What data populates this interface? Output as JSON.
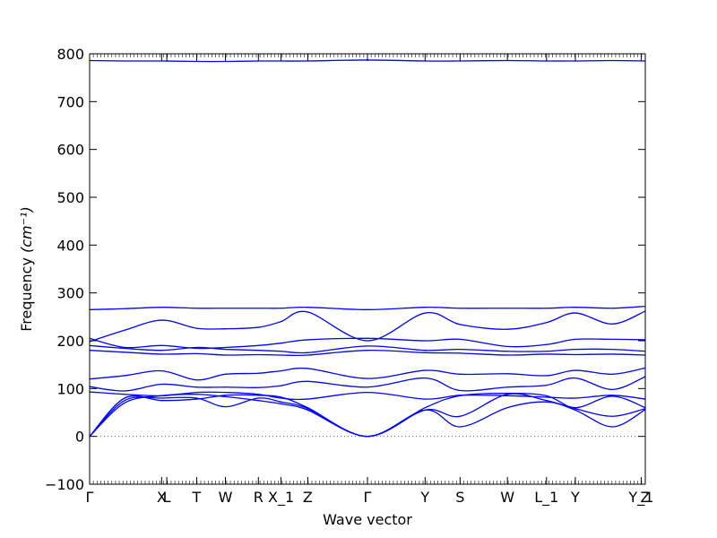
{
  "chart_data": {
    "type": "line",
    "title": "",
    "xlabel": "Wave vector",
    "ylabel": "Frequency ",
    "ylabel_unit": "(cm⁻¹)",
    "ylim": [
      -100,
      800
    ],
    "xlim": [
      0,
      27
    ],
    "yticks": [
      -100,
      0,
      100,
      200,
      300,
      400,
      500,
      600,
      700,
      800
    ],
    "colors": {
      "bands": "#0000ff",
      "zero_line": "#666666",
      "axes": "#000000"
    },
    "grid": false,
    "legend": "none",
    "zero_line": {
      "y": 0,
      "style": "dotted"
    },
    "high_symmetry_points": [
      {
        "label": "Γ",
        "x": 0
      },
      {
        "label": "X",
        "x": 3.5
      },
      {
        "label": "L",
        "x": 3.75
      },
      {
        "label": "T",
        "x": 5.2
      },
      {
        "label": "W",
        "x": 6.6
      },
      {
        "label": "R",
        "x": 8.2
      },
      {
        "label": "X_1",
        "x": 9.3
      },
      {
        "label": "Z",
        "x": 10.6
      },
      {
        "label": "Γ",
        "x": 13.5
      },
      {
        "label": "Y",
        "x": 16.3
      },
      {
        "label": "S",
        "x": 18.0
      },
      {
        "label": "W",
        "x": 20.3
      },
      {
        "label": "L_1",
        "x": 22.2
      },
      {
        "label": "Y",
        "x": 23.6
      },
      {
        "label": "Y_1",
        "x": 26.8
      },
      {
        "label": "Z",
        "x": 27
      }
    ],
    "series": [
      {
        "x": [
          0,
          1.7,
          3.5,
          5.2,
          6.6,
          8.2,
          9.3,
          10.6,
          13.5,
          16.3,
          18.0,
          20.3,
          22.2,
          23.6,
          25.4,
          27
        ],
        "y": [
          0,
          70,
          85,
          88,
          83,
          75,
          68,
          55,
          0,
          55,
          20,
          60,
          72,
          55,
          20,
          56
        ]
      },
      {
        "x": [
          0,
          1.7,
          3.5,
          5.2,
          6.6,
          8.2,
          9.3,
          10.6,
          13.5,
          16.3,
          18.0,
          20.3,
          22.2,
          23.6,
          25.4,
          27
        ],
        "y": [
          0,
          75,
          80,
          80,
          62,
          80,
          72,
          58,
          0,
          55,
          42,
          88,
          75,
          58,
          42,
          58
        ]
      },
      {
        "x": [
          0,
          1.7,
          3.5,
          5.2,
          6.6,
          8.2,
          9.3,
          10.6,
          13.5,
          16.3,
          18.0,
          20.3,
          22.2,
          23.6,
          25.4,
          27
        ],
        "y": [
          0,
          80,
          75,
          78,
          86,
          86,
          82,
          60,
          0,
          60,
          85,
          90,
          85,
          60,
          84,
          60
        ]
      },
      {
        "x": [
          0,
          1.7,
          3.5,
          5.2,
          6.6,
          8.2,
          9.3,
          10.6,
          13.5,
          16.3,
          18.0,
          20.3,
          22.2,
          23.6,
          25.4,
          27
        ],
        "y": [
          93,
          88,
          85,
          92,
          92,
          88,
          80,
          78,
          92,
          78,
          86,
          85,
          82,
          80,
          86,
          78
        ]
      },
      {
        "x": [
          0,
          1.7,
          3.5,
          5.2,
          6.6,
          8.2,
          9.3,
          10.6,
          13.5,
          16.3,
          18.0,
          20.3,
          22.2,
          23.6,
          25.4,
          27
        ],
        "y": [
          104,
          95,
          109,
          103,
          103,
          102,
          106,
          115,
          103,
          122,
          96,
          103,
          107,
          122,
          98,
          125
        ]
      },
      {
        "x": [
          0,
          1.7,
          3.5,
          5.2,
          6.6,
          8.2,
          9.3,
          10.6,
          13.5,
          16.3,
          18.0,
          20.3,
          22.2,
          23.6,
          25.4,
          27
        ],
        "y": [
          120,
          127,
          137,
          118,
          130,
          132,
          137,
          142,
          121,
          138,
          130,
          131,
          127,
          138,
          130,
          143
        ]
      },
      {
        "x": [
          0,
          1.7,
          3.5,
          5.2,
          6.6,
          8.2,
          9.3,
          10.6,
          13.5,
          16.3,
          18.0,
          20.3,
          22.2,
          23.6,
          25.4,
          27
        ],
        "y": [
          180,
          176,
          172,
          173,
          170,
          171,
          170,
          170,
          180,
          175,
          174,
          170,
          172,
          171,
          172,
          170
        ]
      },
      {
        "x": [
          0,
          1.7,
          3.5,
          5.2,
          6.6,
          8.2,
          9.3,
          10.6,
          13.5,
          16.3,
          18.0,
          20.3,
          22.2,
          23.6,
          25.4,
          27
        ],
        "y": [
          190,
          184,
          180,
          186,
          182,
          180,
          178,
          175,
          189,
          180,
          182,
          178,
          178,
          182,
          182,
          178
        ]
      },
      {
        "x": [
          0,
          1.7,
          3.5,
          5.2,
          6.6,
          8.2,
          9.3,
          10.6,
          13.5,
          16.3,
          18.0,
          20.3,
          22.2,
          23.6,
          25.4,
          27
        ],
        "y": [
          205,
          186,
          190,
          184,
          186,
          190,
          195,
          202,
          205,
          200,
          203,
          188,
          192,
          203,
          203,
          202
        ]
      },
      {
        "x": [
          0,
          1.7,
          3.5,
          5.2,
          6.6,
          8.2,
          9.3,
          10.6,
          13.5,
          16.3,
          18.0,
          20.3,
          22.2,
          23.6,
          25.4,
          27
        ],
        "y": [
          198,
          222,
          243,
          226,
          225,
          228,
          240,
          260,
          200,
          258,
          234,
          224,
          238,
          258,
          235,
          262
        ]
      },
      {
        "x": [
          0,
          1.7,
          3.5,
          5.2,
          6.6,
          8.2,
          9.3,
          10.6,
          13.5,
          16.3,
          18.0,
          20.3,
          22.2,
          23.6,
          25.4,
          27
        ],
        "y": [
          265,
          267,
          270,
          268,
          268,
          268,
          268,
          270,
          265,
          270,
          268,
          268,
          268,
          270,
          268,
          272
        ]
      },
      {
        "x": [
          0,
          1.7,
          3.5,
          5.2,
          6.6,
          8.2,
          9.3,
          10.6,
          13.5,
          16.3,
          18.0,
          20.3,
          22.2,
          23.6,
          25.4,
          27
        ],
        "y": [
          786,
          785,
          785,
          784,
          784,
          785,
          785,
          785,
          787,
          785,
          785,
          786,
          785,
          785,
          786,
          785
        ]
      }
    ]
  }
}
